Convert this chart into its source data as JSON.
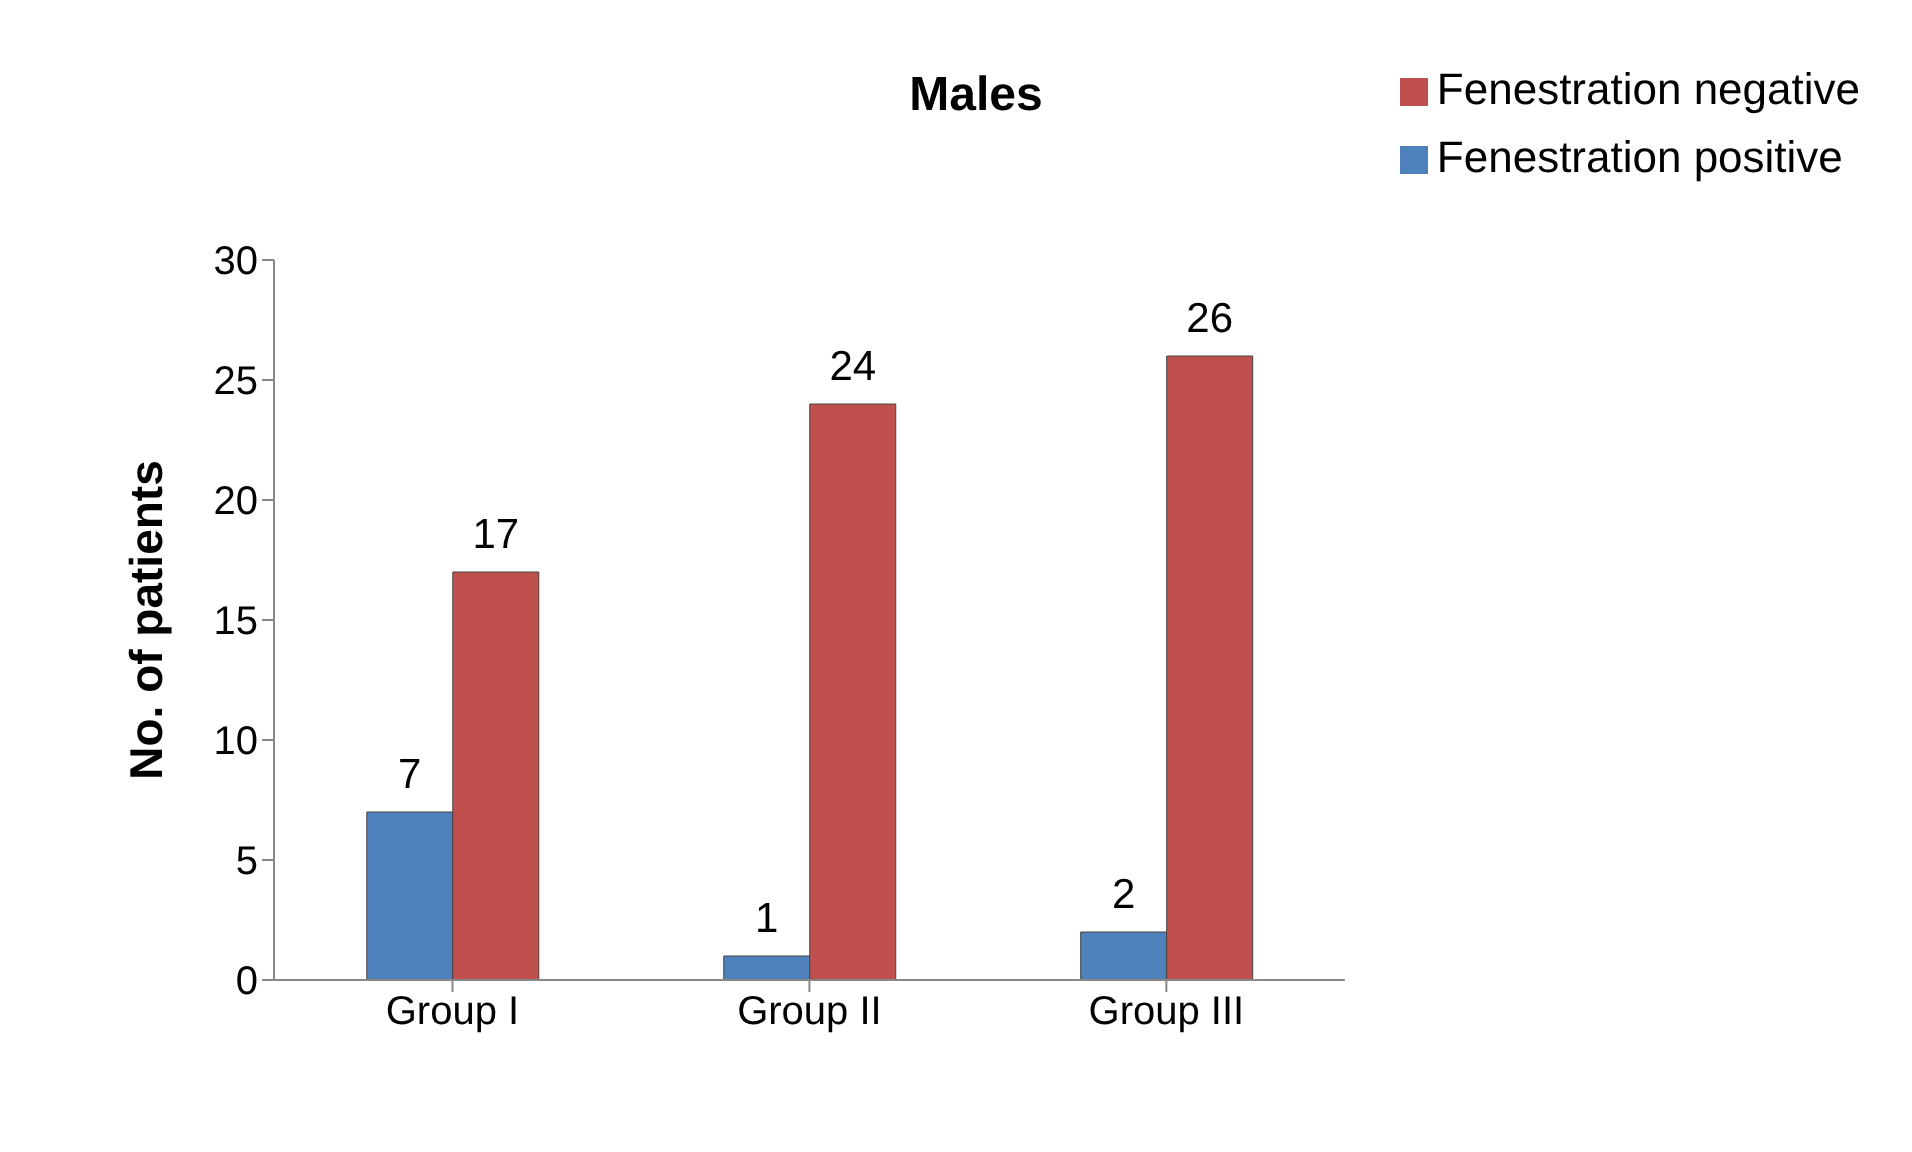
{
  "chart_data": {
    "type": "bar",
    "title": "Males",
    "ylabel": "No. of patients",
    "categories": [
      "Group I",
      "Group II",
      "Group III"
    ],
    "series": [
      {
        "name": "Fenestration positive",
        "color": "#4f81bd",
        "values": [
          7,
          1,
          2
        ]
      },
      {
        "name": "Fenestration negative",
        "color": "#c0504d",
        "values": [
          17,
          24,
          26
        ]
      }
    ],
    "ylim": [
      0,
      30
    ],
    "yticks": [
      0,
      5,
      10,
      15,
      20,
      25,
      30
    ],
    "grid": false,
    "legend": "top right",
    "data_labels": true
  }
}
